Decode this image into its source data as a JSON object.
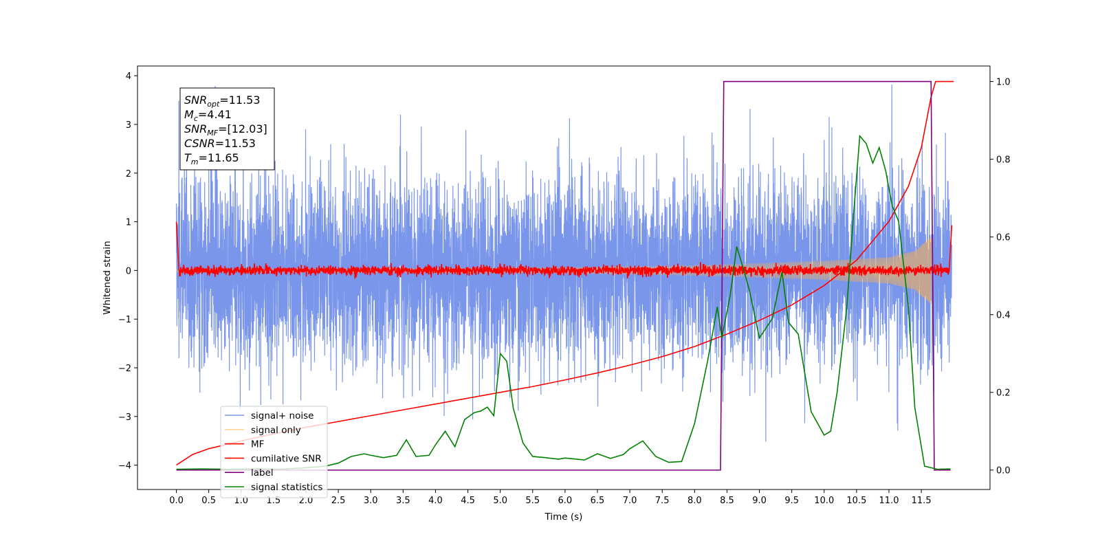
{
  "chart_data": {
    "type": "line",
    "xlabel": "Time (s)",
    "ylabel_left": "Whitened strain",
    "ylabel_right": "",
    "xlim": [
      -0.6,
      12.56
    ],
    "ylim_left": [
      -4.5,
      4.2
    ],
    "ylim_right": [
      -0.05,
      1.04
    ],
    "x_ticks": [
      "0.0",
      "0.5",
      "1.0",
      "1.5",
      "2.0",
      "2.5",
      "3.0",
      "3.5",
      "4.0",
      "4.5",
      "5.0",
      "5.5",
      "6.0",
      "6.5",
      "7.0",
      "7.5",
      "8.0",
      "8.5",
      "9.0",
      "9.5",
      "10.0",
      "10.5",
      "11.0",
      "11.5"
    ],
    "y_ticks_left": [
      "4",
      "3",
      "2",
      "1",
      "0",
      "−1",
      "−2",
      "−3",
      "−4"
    ],
    "y_ticks_right": [
      "1.0",
      "0.8",
      "0.6",
      "0.4",
      "0.2",
      "0.0"
    ],
    "grid": false,
    "legend_placement": "lower-left",
    "info_box": {
      "lines": [
        {
          "sym": "SNR",
          "sub": "opt",
          "val": "=11.53"
        },
        {
          "sym": "M",
          "sub": "c",
          "val": "=4.41"
        },
        {
          "sym": "SNR",
          "sub": "MF",
          "val": "=[12.03]"
        },
        {
          "sym": "CSNR",
          "sub": "",
          "val": "=11.53"
        },
        {
          "sym": "T",
          "sub": "m",
          "val": "=11.65"
        }
      ]
    },
    "series": [
      {
        "name": "signal+ noise",
        "color": "#4169e1",
        "axis": "left",
        "kind": "noise",
        "amplitude_sigma": 0.95,
        "range": [
          -4.15,
          3.82
        ]
      },
      {
        "name": "signal only",
        "color": "#ffb347",
        "axis": "left",
        "kind": "chirp",
        "envelope": [
          [
            0.0,
            0.03
          ],
          [
            6.0,
            0.06
          ],
          [
            8.0,
            0.1
          ],
          [
            9.0,
            0.14
          ],
          [
            10.0,
            0.19
          ],
          [
            11.0,
            0.27
          ],
          [
            11.4,
            0.4
          ],
          [
            11.65,
            0.7
          ]
        ]
      },
      {
        "name": "MF",
        "color": "#ff0000",
        "axis": "left",
        "kind": "mf",
        "start_value": 1.0,
        "baseline": 0.0,
        "noise_level": 0.05,
        "end_value": 0.93
      },
      {
        "name": "cumilative SNR",
        "color": "#ff0000",
        "axis": "right",
        "points": [
          [
            0.0,
            0.013
          ],
          [
            0.25,
            0.04
          ],
          [
            0.5,
            0.055
          ],
          [
            1.0,
            0.075
          ],
          [
            1.5,
            0.093
          ],
          [
            2.0,
            0.11
          ],
          [
            2.5,
            0.125
          ],
          [
            3.0,
            0.14
          ],
          [
            3.5,
            0.155
          ],
          [
            4.0,
            0.17
          ],
          [
            4.5,
            0.185
          ],
          [
            5.0,
            0.2
          ],
          [
            5.5,
            0.215
          ],
          [
            6.0,
            0.232
          ],
          [
            6.5,
            0.25
          ],
          [
            7.0,
            0.27
          ],
          [
            7.5,
            0.292
          ],
          [
            8.0,
            0.318
          ],
          [
            8.5,
            0.35
          ],
          [
            9.0,
            0.385
          ],
          [
            9.5,
            0.425
          ],
          [
            10.0,
            0.475
          ],
          [
            10.5,
            0.54
          ],
          [
            11.0,
            0.64
          ],
          [
            11.3,
            0.73
          ],
          [
            11.5,
            0.83
          ],
          [
            11.65,
            0.96
          ],
          [
            11.72,
            1.0
          ],
          [
            12.0,
            1.0
          ]
        ]
      },
      {
        "name": "label",
        "color": "#800080",
        "axis": "right",
        "points": [
          [
            0.0,
            0.0
          ],
          [
            8.4,
            0.0
          ],
          [
            8.45,
            1.0
          ],
          [
            11.65,
            1.0
          ],
          [
            11.7,
            0.0
          ],
          [
            11.95,
            0.0
          ]
        ]
      },
      {
        "name": "signal statistics",
        "color": "#008000",
        "axis": "right",
        "points": [
          [
            0.0,
            0.002
          ],
          [
            0.4,
            0.003
          ],
          [
            0.8,
            0.002
          ],
          [
            1.2,
            0.003
          ],
          [
            1.6,
            0.002
          ],
          [
            2.0,
            0.006
          ],
          [
            2.3,
            0.01
          ],
          [
            2.5,
            0.018
          ],
          [
            2.7,
            0.035
          ],
          [
            2.9,
            0.042
          ],
          [
            3.0,
            0.038
          ],
          [
            3.2,
            0.032
          ],
          [
            3.4,
            0.038
          ],
          [
            3.55,
            0.078
          ],
          [
            3.7,
            0.035
          ],
          [
            3.9,
            0.038
          ],
          [
            4.0,
            0.065
          ],
          [
            4.15,
            0.1
          ],
          [
            4.3,
            0.06
          ],
          [
            4.45,
            0.13
          ],
          [
            4.6,
            0.148
          ],
          [
            4.7,
            0.152
          ],
          [
            4.8,
            0.162
          ],
          [
            4.9,
            0.14
          ],
          [
            5.0,
            0.3
          ],
          [
            5.1,
            0.28
          ],
          [
            5.2,
            0.16
          ],
          [
            5.35,
            0.07
          ],
          [
            5.5,
            0.035
          ],
          [
            5.7,
            0.032
          ],
          [
            5.9,
            0.028
          ],
          [
            6.0,
            0.031
          ],
          [
            6.3,
            0.026
          ],
          [
            6.5,
            0.042
          ],
          [
            6.7,
            0.03
          ],
          [
            6.9,
            0.04
          ],
          [
            7.0,
            0.055
          ],
          [
            7.2,
            0.075
          ],
          [
            7.4,
            0.035
          ],
          [
            7.6,
            0.02
          ],
          [
            7.8,
            0.022
          ],
          [
            8.0,
            0.12
          ],
          [
            8.2,
            0.28
          ],
          [
            8.35,
            0.42
          ],
          [
            8.42,
            0.34
          ],
          [
            8.55,
            0.45
          ],
          [
            8.65,
            0.575
          ],
          [
            8.75,
            0.52
          ],
          [
            8.85,
            0.46
          ],
          [
            9.0,
            0.34
          ],
          [
            9.2,
            0.39
          ],
          [
            9.35,
            0.51
          ],
          [
            9.45,
            0.38
          ],
          [
            9.6,
            0.35
          ],
          [
            9.8,
            0.15
          ],
          [
            10.0,
            0.09
          ],
          [
            10.1,
            0.1
          ],
          [
            10.2,
            0.2
          ],
          [
            10.35,
            0.42
          ],
          [
            10.45,
            0.65
          ],
          [
            10.55,
            0.86
          ],
          [
            10.65,
            0.84
          ],
          [
            10.75,
            0.79
          ],
          [
            10.85,
            0.83
          ],
          [
            10.95,
            0.77
          ],
          [
            11.05,
            0.68
          ],
          [
            11.15,
            0.64
          ],
          [
            11.3,
            0.42
          ],
          [
            11.4,
            0.16
          ],
          [
            11.55,
            0.01
          ],
          [
            11.75,
            0.002
          ],
          [
            11.95,
            0.003
          ]
        ]
      }
    ]
  }
}
